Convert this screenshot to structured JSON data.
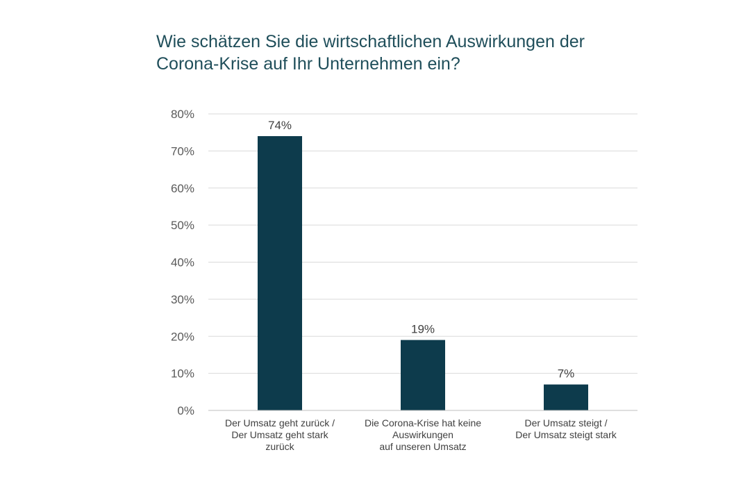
{
  "chart_data": {
    "type": "bar",
    "title": "Wie schätzen Sie die wirtschaftlichen Auswirkungen der Corona-Krise auf Ihr Unternehmen ein?",
    "title_lines": [
      "Wie schätzen Sie die wirtschaftlichen Auswirkungen der",
      "Corona-Krise auf Ihr Unternehmen ein?"
    ],
    "categories": [
      "Der Umsatz geht zurück / Der Umsatz geht stark zurück",
      "Die Corona-Krise hat keine Auswirkungen auf unseren Umsatz",
      "Der Umsatz steigt / Der Umsatz steigt stark"
    ],
    "category_lines": [
      [
        "Der Umsatz geht zurück /",
        "Der Umsatz geht stark",
        "zurück"
      ],
      [
        "Die Corona-Krise hat keine",
        "Auswirkungen",
        "auf unseren Umsatz"
      ],
      [
        "Der Umsatz steigt /",
        "Der Umsatz steigt stark"
      ]
    ],
    "values": [
      74,
      19,
      7
    ],
    "data_labels": [
      "74%",
      "19%",
      "7%"
    ],
    "y_ticks": [
      0,
      10,
      20,
      30,
      40,
      50,
      60,
      70,
      80
    ],
    "y_tick_labels": [
      "0%",
      "10%",
      "20%",
      "30%",
      "40%",
      "50%",
      "60%",
      "70%",
      "80%"
    ],
    "ylim": [
      0,
      80
    ],
    "xlabel": "",
    "ylabel": "",
    "grid": true,
    "legend": "none",
    "colors": {
      "bar": "#0d3b4c",
      "grid": "#d9d9d9",
      "title": "#1f4e5a"
    }
  }
}
